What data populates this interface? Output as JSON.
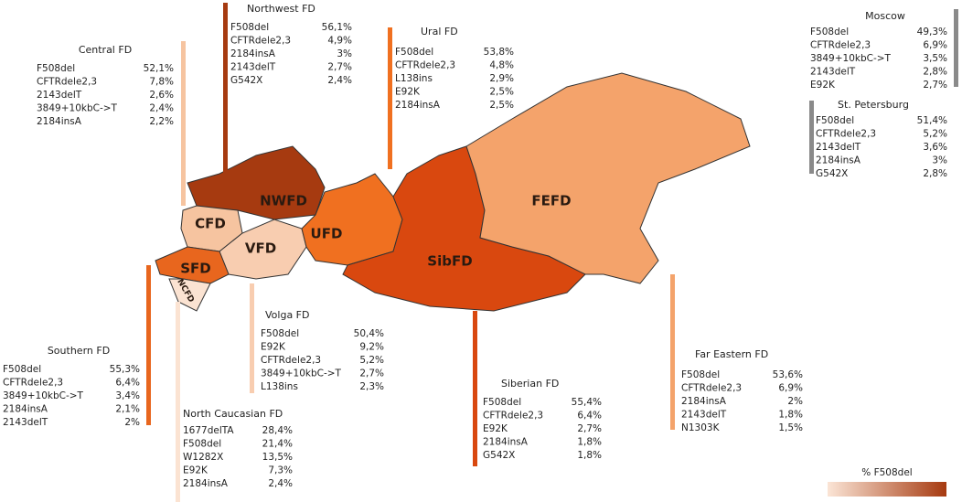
{
  "map_labels": [
    "NWFD",
    "CFD",
    "VFD",
    "UFD",
    "SibFD",
    "FEFD",
    "SFD",
    "NCFD"
  ],
  "regions": [
    {
      "title": "Central FD",
      "color": "#f6c4a0",
      "rows": [
        [
          "F508del",
          "52,1%"
        ],
        [
          "CFTRdele2,3",
          "7,8%"
        ],
        [
          "2143delT",
          "2,6%"
        ],
        [
          "3849+10kbC->T",
          "2,4%"
        ],
        [
          "2184insA",
          "2,2%"
        ]
      ]
    },
    {
      "title": "Northwest FD",
      "color": "#a63a10",
      "rows": [
        [
          "F508del",
          "56,1%"
        ],
        [
          "CFTRdele2,3",
          "4,9%"
        ],
        [
          "2184insA",
          "3%"
        ],
        [
          "2143delT",
          "2,7%"
        ],
        [
          "G542X",
          "2,4%"
        ]
      ]
    },
    {
      "title": "Ural FD",
      "color": "#f07020",
      "rows": [
        [
          "F508del",
          "53,8%"
        ],
        [
          "CFTRdele2,3",
          "4,8%"
        ],
        [
          "L138ins",
          "2,9%"
        ],
        [
          "E92K",
          "2,5%"
        ],
        [
          "2184insA",
          "2,5%"
        ]
      ]
    },
    {
      "title": "Moscow",
      "color": "#8a8a8a",
      "rows": [
        [
          "F508del",
          "49,3%"
        ],
        [
          "CFTRdele2,3",
          "6,9%"
        ],
        [
          "3849+10kbC->T",
          "3,5%"
        ],
        [
          "2143delT",
          "2,8%"
        ],
        [
          "E92K",
          "2,7%"
        ]
      ]
    },
    {
      "title": "St. Petersburg",
      "color": "#8a8a8a",
      "rows": [
        [
          "F508del",
          "51,4%"
        ],
        [
          "CFTRdele2,3",
          "5,2%"
        ],
        [
          "2143delT",
          "3,6%"
        ],
        [
          "2184insA",
          "3%"
        ],
        [
          "G542X",
          "2,8%"
        ]
      ]
    },
    {
      "title": "Southern FD",
      "color": "#e8661e",
      "rows": [
        [
          "F508del",
          "55,3%"
        ],
        [
          "CFTRdele2,3",
          "6,4%"
        ],
        [
          "3849+10kbC->T",
          "3,4%"
        ],
        [
          "2184insA",
          "2,1%"
        ],
        [
          "2143delT",
          "2%"
        ]
      ]
    },
    {
      "title": "North Caucasian FD",
      "color": "#fbe3d2",
      "rows": [
        [
          "1677delTA",
          "28,4%"
        ],
        [
          "F508del",
          "21,4%"
        ],
        [
          "W1282X",
          "13,5%"
        ],
        [
          "E92K",
          "7,3%"
        ],
        [
          "2184insA",
          "2,4%"
        ]
      ]
    },
    {
      "title": "Volga FD",
      "color": "#f8cdb0",
      "rows": [
        [
          "F508del",
          "50,4%"
        ],
        [
          "E92K",
          "9,2%"
        ],
        [
          "CFTRdele2,3",
          "5,2%"
        ],
        [
          "3849+10kbC->T",
          "2,7%"
        ],
        [
          "L138ins",
          "2,3%"
        ]
      ]
    },
    {
      "title": "Siberian FD",
      "color": "#d9480f",
      "rows": [
        [
          "F508del",
          "55,4%"
        ],
        [
          "CFTRdele2,3",
          "6,4%"
        ],
        [
          "E92K",
          "2,7%"
        ],
        [
          "2184insA",
          "1,8%"
        ],
        [
          "G542X",
          "1,8%"
        ]
      ]
    },
    {
      "title": "Far Eastern FD",
      "color": "#f4a36b",
      "rows": [
        [
          "F508del",
          "53,6%"
        ],
        [
          "CFTRdele2,3",
          "6,9%"
        ],
        [
          "2184insA",
          "2%"
        ],
        [
          "2143delT",
          "1,8%"
        ],
        [
          "N1303K",
          "1,5%"
        ]
      ]
    }
  ],
  "legend": {
    "title": "% F508del"
  }
}
